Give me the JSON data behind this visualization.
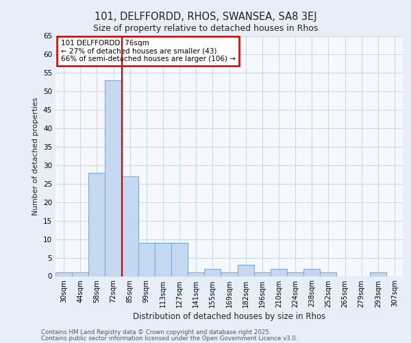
{
  "title1": "101, DELFFORDD, RHOS, SWANSEA, SA8 3EJ",
  "title2": "Size of property relative to detached houses in Rhos",
  "xlabel": "Distribution of detached houses by size in Rhos",
  "ylabel": "Number of detached properties",
  "categories": [
    "30sqm",
    "44sqm",
    "58sqm",
    "72sqm",
    "85sqm",
    "99sqm",
    "113sqm",
    "127sqm",
    "141sqm",
    "155sqm",
    "169sqm",
    "182sqm",
    "196sqm",
    "210sqm",
    "224sqm",
    "238sqm",
    "252sqm",
    "265sqm",
    "279sqm",
    "293sqm",
    "307sqm"
  ],
  "bar_values": [
    1,
    1,
    28,
    53,
    27,
    9,
    9,
    9,
    1,
    2,
    1,
    3,
    1,
    2,
    1,
    2,
    1,
    0,
    0,
    1,
    0
  ],
  "bar_color": "#c5d8f0",
  "bar_edge_color": "#7aabdc",
  "vline_x": 3.5,
  "vline_color": "#cc0000",
  "annotation_text": "101 DELFFORDD: 76sqm\n← 27% of detached houses are smaller (43)\n66% of semi-detached houses are larger (106) →",
  "ylim": [
    0,
    65
  ],
  "yticks": [
    0,
    5,
    10,
    15,
    20,
    25,
    30,
    35,
    40,
    45,
    50,
    55,
    60,
    65
  ],
  "footer1": "Contains HM Land Registry data © Crown copyright and database right 2025.",
  "footer2": "Contains public sector information licensed under the Open Government Licence v3.0.",
  "bg_color": "#e8eef8",
  "plot_bg_color": "#f5f8ff",
  "grid_color": "#c8d8ee"
}
